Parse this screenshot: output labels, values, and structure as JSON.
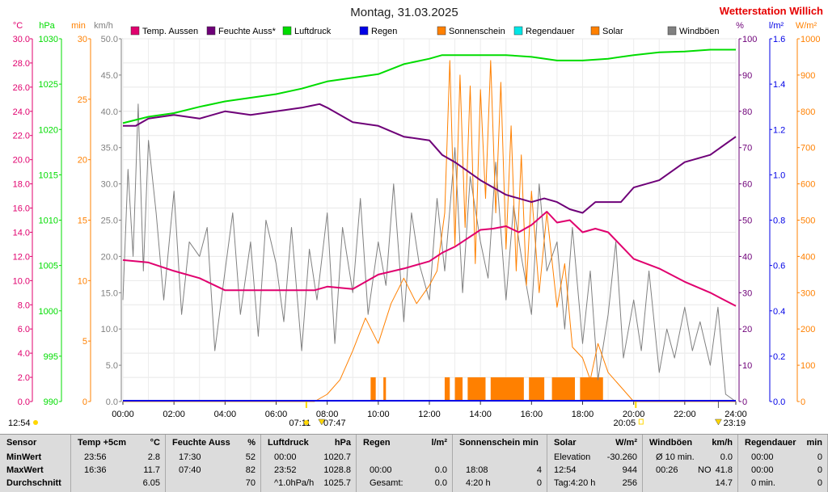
{
  "header": {
    "date_title": "Montag, 31.03.2025",
    "station_name": "Wetterstation Willich",
    "left_units": [
      "°C",
      "hPa",
      "min",
      "km/h"
    ],
    "right_units": [
      "%",
      "l/m²",
      "W/m²"
    ]
  },
  "legend": [
    {
      "label": "Temp. Aussen",
      "color": "#e0006e"
    },
    {
      "label": "Feuchte Auss*",
      "color": "#6e0078"
    },
    {
      "label": "Luftdruck",
      "color": "#00dc00"
    },
    {
      "label": "Regen",
      "color": "#0000e6"
    },
    {
      "label": "Sonnenschein",
      "color": "#ff8000"
    },
    {
      "label": "Regendauer",
      "color": "#00e6e6"
    },
    {
      "label": "Solar",
      "color": "#ff8000"
    },
    {
      "label": "Windböen",
      "color": "#808080"
    }
  ],
  "axes": {
    "temp_ticks": [
      "30.0",
      "28.0",
      "26.0",
      "24.0",
      "22.0",
      "20.0",
      "18.0",
      "16.0",
      "14.0",
      "12.0",
      "10.0",
      "8.0",
      "6.0",
      "4.0",
      "2.0",
      "0.0"
    ],
    "hpa_ticks": [
      "1030",
      "1025",
      "1020",
      "1015",
      "1010",
      "1005",
      "1000",
      "995",
      "990"
    ],
    "min_ticks": [
      "30",
      "25",
      "20",
      "15",
      "10",
      "5",
      "0"
    ],
    "kmh_ticks": [
      "50.0",
      "45.0",
      "40.0",
      "35.0",
      "30.0",
      "25.0",
      "20.0",
      "15.0",
      "10.0",
      "5.0",
      "0.0"
    ],
    "pct_ticks": [
      "100",
      "90",
      "80",
      "70",
      "60",
      "50",
      "40",
      "30",
      "20",
      "10",
      "0"
    ],
    "lm2_ticks": [
      "1.6",
      "1.4",
      "1.2",
      "1.0",
      "0.8",
      "0.6",
      "0.4",
      "0.2",
      "0.0"
    ],
    "wm2_ticks": [
      "1000",
      "900",
      "800",
      "700",
      "600",
      "500",
      "400",
      "300",
      "200",
      "100",
      "0"
    ],
    "time_ticks": [
      "00:00",
      "02:00",
      "04:00",
      "06:00",
      "08:00",
      "10:00",
      "12:00",
      "14:00",
      "16:00",
      "18:00",
      "20:00",
      "22:00",
      "24:00"
    ]
  },
  "sun_markers": {
    "left_time": "12:54",
    "sunrise": "07:11",
    "sunrise_civil": "07:47",
    "sunset": "20:05",
    "moon": "23:19"
  },
  "chart_data": {
    "type": "line",
    "x_unit": "hour",
    "xlim": [
      0,
      24
    ],
    "series": [
      {
        "name": "Temp. Aussen",
        "unit": "°C",
        "ylim": [
          0,
          30
        ],
        "color": "#e0006e",
        "x": [
          0,
          1,
          2,
          3,
          4,
          5,
          6,
          7,
          7.5,
          8,
          9,
          10,
          11,
          12,
          12.5,
          13,
          14,
          14.5,
          15,
          15.5,
          16,
          16.6,
          17,
          17.5,
          18,
          18.5,
          19,
          20,
          21,
          22,
          23,
          24
        ],
        "y": [
          11.7,
          11.5,
          10.8,
          10.2,
          9.2,
          9.2,
          9.2,
          9.2,
          9.2,
          9.5,
          9.3,
          10.5,
          11.0,
          11.6,
          12.3,
          12.8,
          14.2,
          14.3,
          14.5,
          14.0,
          14.6,
          15.7,
          14.8,
          15.0,
          14.0,
          14.3,
          14.0,
          11.8,
          11.0,
          9.9,
          9.0,
          7.9
        ]
      },
      {
        "name": "Feuchte Auss*",
        "unit": "%",
        "ylim": [
          0,
          100
        ],
        "color": "#6e0078",
        "x": [
          0,
          0.5,
          1,
          2,
          3,
          3.5,
          4,
          5,
          6,
          7,
          7.7,
          8,
          9,
          10,
          11,
          12,
          12.5,
          13,
          14,
          14.5,
          15,
          15.5,
          16,
          16.5,
          17,
          17.5,
          18,
          18.5,
          19,
          19.5,
          20,
          21,
          22,
          23,
          24
        ],
        "y": [
          76,
          76,
          78,
          79,
          78,
          79,
          80,
          79,
          80,
          81,
          82,
          81,
          77,
          76,
          73,
          72,
          68,
          66,
          61,
          59,
          57,
          56,
          55,
          56,
          55,
          53,
          52,
          55,
          55,
          55,
          59,
          61,
          66,
          68,
          73
        ]
      },
      {
        "name": "Luftdruck",
        "unit": "hPa",
        "ylim": [
          990,
          1030
        ],
        "color": "#00dc00",
        "x": [
          0,
          1,
          2,
          3,
          4,
          5,
          6,
          7,
          8,
          9,
          10,
          11,
          12,
          12.5,
          13,
          14,
          15,
          16,
          17,
          18,
          19,
          20,
          21,
          22,
          23,
          24
        ],
        "y": [
          1020.7,
          1021.4,
          1021.8,
          1022.5,
          1023.1,
          1023.5,
          1023.9,
          1024.5,
          1025.3,
          1025.7,
          1026.1,
          1027.2,
          1027.8,
          1028.2,
          1028.2,
          1028.2,
          1028.2,
          1028.0,
          1027.6,
          1027.6,
          1027.8,
          1028.2,
          1028.5,
          1028.6,
          1028.8,
          1028.8
        ]
      },
      {
        "name": "Windböen",
        "unit": "km/h",
        "ylim": [
          0,
          50
        ],
        "color": "#808080",
        "x": [
          0,
          0.2,
          0.4,
          0.6,
          0.8,
          1,
          1.3,
          1.6,
          2,
          2.3,
          2.6,
          3,
          3.3,
          3.6,
          4,
          4.3,
          4.6,
          5,
          5.3,
          5.6,
          6,
          6.3,
          6.6,
          7,
          7.3,
          7.6,
          8,
          8.3,
          8.6,
          9,
          9.3,
          9.6,
          10,
          10.3,
          10.6,
          11,
          11.3,
          11.6,
          12,
          12.3,
          12.6,
          13,
          13.3,
          13.6,
          14,
          14.3,
          14.6,
          15,
          15.3,
          15.6,
          16,
          16.3,
          16.6,
          17,
          17.3,
          17.6,
          18,
          18.3,
          18.6,
          19,
          19.3,
          19.6,
          20,
          20.3,
          20.6,
          21,
          21.3,
          21.6,
          22,
          22.3,
          22.6,
          23,
          23.3,
          23.6,
          24
        ],
        "y": [
          14,
          32,
          20,
          41,
          18,
          36,
          26,
          14,
          29,
          12,
          22,
          20,
          24,
          7,
          18,
          26,
          12,
          22,
          9,
          25,
          19,
          11,
          24,
          7,
          21,
          14,
          26,
          8,
          24,
          15,
          28,
          12,
          22,
          16,
          30,
          11,
          26,
          19,
          14,
          28,
          18,
          35,
          15,
          31,
          22,
          17,
          33,
          14,
          27,
          20,
          12,
          30,
          18,
          22,
          10,
          24,
          8,
          18,
          3,
          12,
          22,
          6,
          14,
          7,
          18,
          4,
          10,
          6,
          13,
          7,
          11,
          5,
          13,
          1,
          0
        ]
      },
      {
        "name": "Solar",
        "unit": "W/m²",
        "ylim": [
          0,
          1000
        ],
        "color": "#ff8000",
        "x": [
          0,
          7.5,
          8,
          8.5,
          9,
          9.5,
          10,
          10.5,
          11,
          11.5,
          12,
          12.3,
          12.6,
          12.8,
          13,
          13.2,
          13.4,
          13.6,
          13.8,
          14,
          14.2,
          14.4,
          14.6,
          14.8,
          15,
          15.2,
          15.4,
          15.6,
          15.8,
          16,
          16.3,
          16.6,
          17,
          17.3,
          17.6,
          18,
          18.3,
          18.6,
          19,
          19.5,
          20,
          24
        ],
        "y": [
          0,
          0,
          20,
          60,
          140,
          230,
          160,
          270,
          340,
          270,
          320,
          360,
          520,
          940,
          430,
          900,
          480,
          870,
          380,
          860,
          560,
          940,
          520,
          880,
          420,
          760,
          360,
          680,
          320,
          580,
          300,
          520,
          260,
          380,
          150,
          120,
          60,
          160,
          80,
          40,
          0,
          0
        ]
      }
    ],
    "sunshine_minutes": {
      "unit": "min",
      "ylim": [
        0,
        30
      ],
      "intervals_hours": [
        [
          9.7,
          9.9
        ],
        [
          10.2,
          10.3
        ],
        [
          12.6,
          12.8
        ],
        [
          13.0,
          13.3
        ],
        [
          13.5,
          14.2
        ],
        [
          14.4,
          15.7
        ],
        [
          15.9,
          16.5
        ],
        [
          16.8,
          17.7
        ],
        [
          17.9,
          18.8
        ]
      ],
      "value": 1
    }
  },
  "stats": {
    "columns": [
      {
        "title": "Sensor",
        "unit": "",
        "rows": [
          {
            "a": "MinWert",
            "b": "",
            "c": ""
          },
          {
            "a": "MaxWert",
            "b": "",
            "c": ""
          },
          {
            "a": "Durchschnitt",
            "b": "",
            "c": ""
          }
        ]
      },
      {
        "title": "Temp +5cm",
        "unit": "°C",
        "rows": [
          {
            "a": "23:56",
            "b": "",
            "c": "2.8"
          },
          {
            "a": "16:36",
            "b": "",
            "c": "11.7"
          },
          {
            "a": "",
            "b": "",
            "c": "6.05"
          }
        ]
      },
      {
        "title": "Feuchte Auss",
        "unit": "%",
        "rows": [
          {
            "a": "17:30",
            "b": "",
            "c": "52"
          },
          {
            "a": "07:40",
            "b": "",
            "c": "82"
          },
          {
            "a": "",
            "b": "",
            "c": "70"
          }
        ]
      },
      {
        "title": "Luftdruck",
        "unit": "hPa",
        "rows": [
          {
            "a": "00:00",
            "b": "",
            "c": "1020.7"
          },
          {
            "a": "23:52",
            "b": "",
            "c": "1028.8"
          },
          {
            "a": "^1.0hPa/h",
            "b": "",
            "c": "1025.7"
          }
        ]
      },
      {
        "title": "Regen",
        "unit": "l/m²",
        "rows": [
          {
            "a": "",
            "b": "",
            "c": ""
          },
          {
            "a": "00:00",
            "b": "",
            "c": "0.0"
          },
          {
            "a": "Gesamt:",
            "b": "",
            "c": "0.0"
          }
        ]
      },
      {
        "title": "Sonnenschein min",
        "unit": "",
        "rows": [
          {
            "a": "",
            "b": "",
            "c": ""
          },
          {
            "a": "18:08",
            "b": "",
            "c": "4"
          },
          {
            "a": "4:20 h",
            "b": "",
            "c": "0"
          }
        ]
      },
      {
        "title": "Solar",
        "unit": "W/m²",
        "rows": [
          {
            "a": "Elevation",
            "b": "",
            "c": "-30.260"
          },
          {
            "a": "12:54",
            "b": "",
            "c": "944"
          },
          {
            "a": "Tag:4:20 h",
            "b": "",
            "c": "256"
          }
        ]
      },
      {
        "title": "Windböen",
        "unit": "km/h",
        "rows": [
          {
            "a": "Ø 10 min.",
            "b": "",
            "c": "0.0"
          },
          {
            "a": "00:26",
            "b": "NO",
            "c": "41.8"
          },
          {
            "a": "",
            "b": "",
            "c": "14.7"
          }
        ]
      },
      {
        "title": "Regendauer",
        "unit": "min",
        "rows": [
          {
            "a": "00:00",
            "b": "",
            "c": "0"
          },
          {
            "a": "00:00",
            "b": "",
            "c": "0"
          },
          {
            "a": "0 min.",
            "b": "",
            "c": "0"
          }
        ]
      }
    ]
  }
}
